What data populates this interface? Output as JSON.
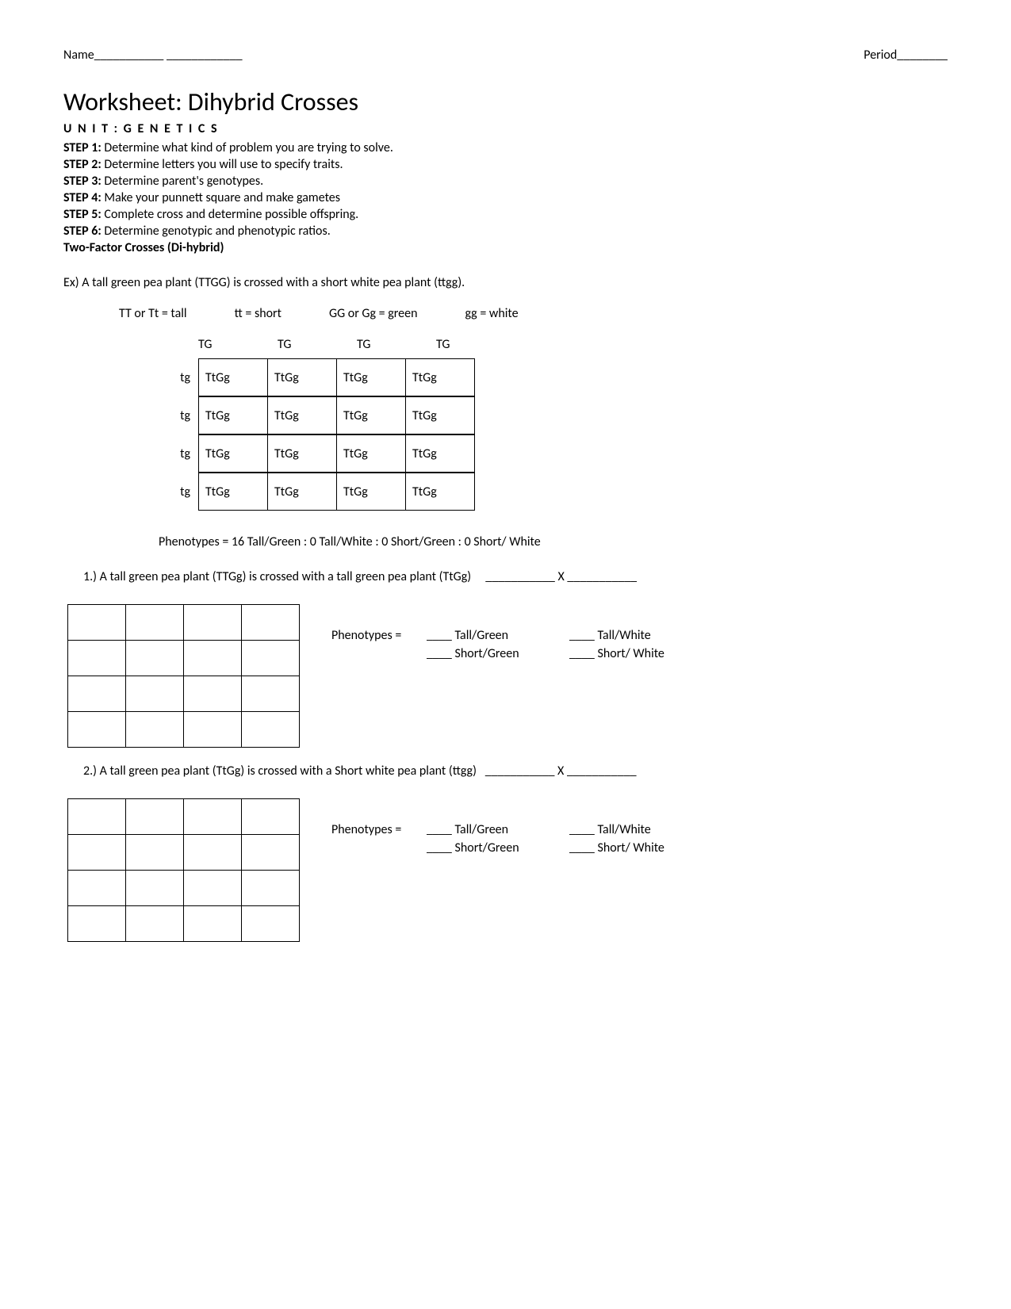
{
  "header": {
    "name_label": "Name",
    "period_label": "Period"
  },
  "title": "Worksheet: Dihybrid Crosses",
  "unit": "U N I T : G E N E T I C S",
  "steps": [
    {
      "label": "STEP 1:",
      "text": " Determine what kind of problem you are trying to solve."
    },
    {
      "label": "STEP 2:",
      "text": " Determine letters you will use to specify traits."
    },
    {
      "label": "STEP 3:",
      "text": " Determine parent's genotypes."
    },
    {
      "label": "STEP 4:",
      "text": " Make your punnett square and make gametes"
    },
    {
      "label": "STEP 5:",
      "text": " Complete cross and determine possible offspring."
    },
    {
      "label": "STEP 6:",
      "text": " Determine genotypic and phenotypic ratios."
    }
  ],
  "two_factor": "Two-Factor Crosses (Di-hybrid)",
  "example_text": "Ex) A tall green pea plant (TTGG) is crossed with a short white pea plant (ttgg).",
  "legend": [
    "TT or Tt = tall",
    "tt = short",
    "GG or Gg = green",
    "gg = white"
  ],
  "punnett": {
    "col_headers": [
      "TG",
      "TG",
      "TG",
      "TG"
    ],
    "row_headers": [
      "tg",
      "tg",
      "tg",
      "tg"
    ],
    "cells": [
      [
        "TtGg",
        "TtGg",
        "TtGg",
        "TtGg"
      ],
      [
        "TtGg",
        "TtGg",
        "TtGg",
        "TtGg"
      ],
      [
        "TtGg",
        "TtGg",
        "TtGg",
        "TtGg"
      ],
      [
        "TtGg",
        "TtGg",
        "TtGg",
        "TtGg"
      ]
    ]
  },
  "phenotypes_result": "Phenotypes =  16 Tall/Green :  0 Tall/White :  0 Short/Green :  0 Short/ White",
  "problems": [
    {
      "num": "1.)",
      "text": "  A tall green pea plant (TTGg) is crossed with a tall green pea plant (TtGg)",
      "cross_blank": "___________ X ___________"
    },
    {
      "num": "2.)",
      "text": "  A tall green pea plant (TtGg) is crossed with a Short white pea plant (ttgg)",
      "cross_blank": "___________ X ___________"
    }
  ],
  "pheno_template": {
    "label": "Phenotypes =",
    "items": [
      "Tall/Green",
      "Tall/White",
      "Short/Green",
      "Short/ White"
    ]
  }
}
